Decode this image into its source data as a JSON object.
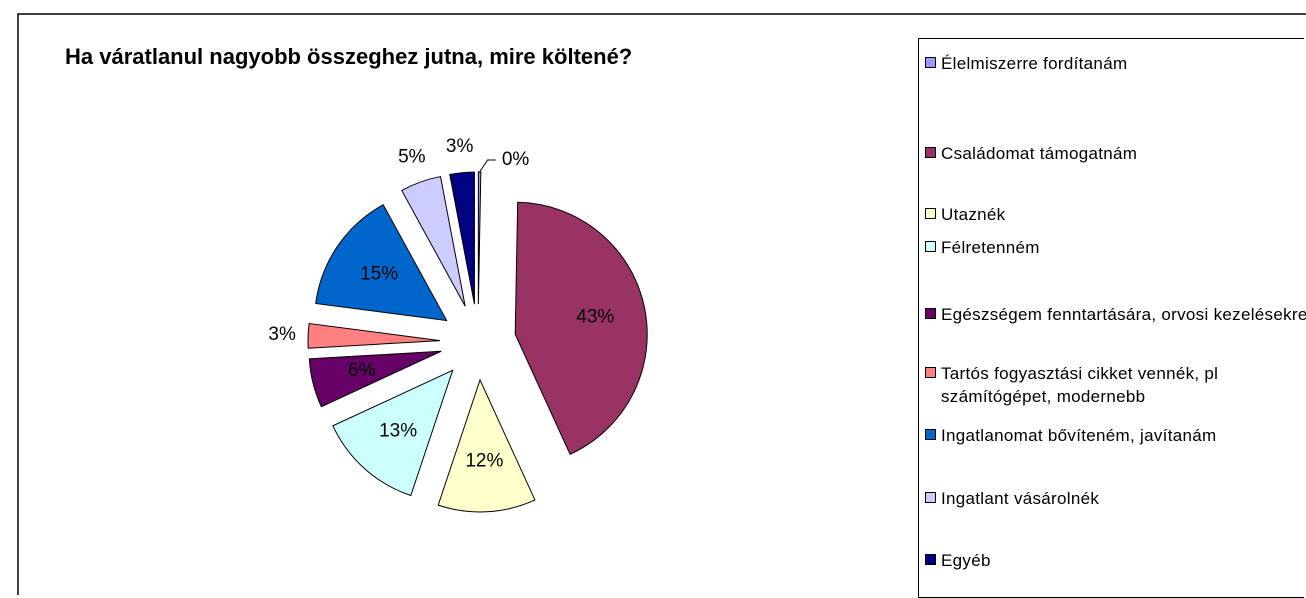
{
  "chart_data": {
    "type": "pie",
    "title": "Ha váratlanul nagyobb összeghez jutna, mire költené?",
    "categories": [
      "Élelmiszerre fordítanám",
      "Családomat támogatnám",
      "Utaznék",
      "Félretenném",
      "Egészségem fenntartására, orvosi kezelésekre",
      "Tartós fogyasztási cikket vennék, pl számítógépet, modernebb",
      "Ingatlanomat bővíteném, javítanám",
      "Ingatlant vásárolnék",
      "Egyéb"
    ],
    "values": [
      0.3,
      43,
      12,
      13,
      6,
      3,
      15,
      5,
      3
    ],
    "value_labels": [
      "0%",
      "43%",
      "12%",
      "13%",
      "6%",
      "3%",
      "15%",
      "5%",
      "3%"
    ],
    "colors": [
      "#9999ff",
      "#993366",
      "#ffffcc",
      "#ccffff",
      "#660066",
      "#ff8080",
      "#0066cc",
      "#ccccff",
      "#000080"
    ],
    "legend": "right"
  }
}
